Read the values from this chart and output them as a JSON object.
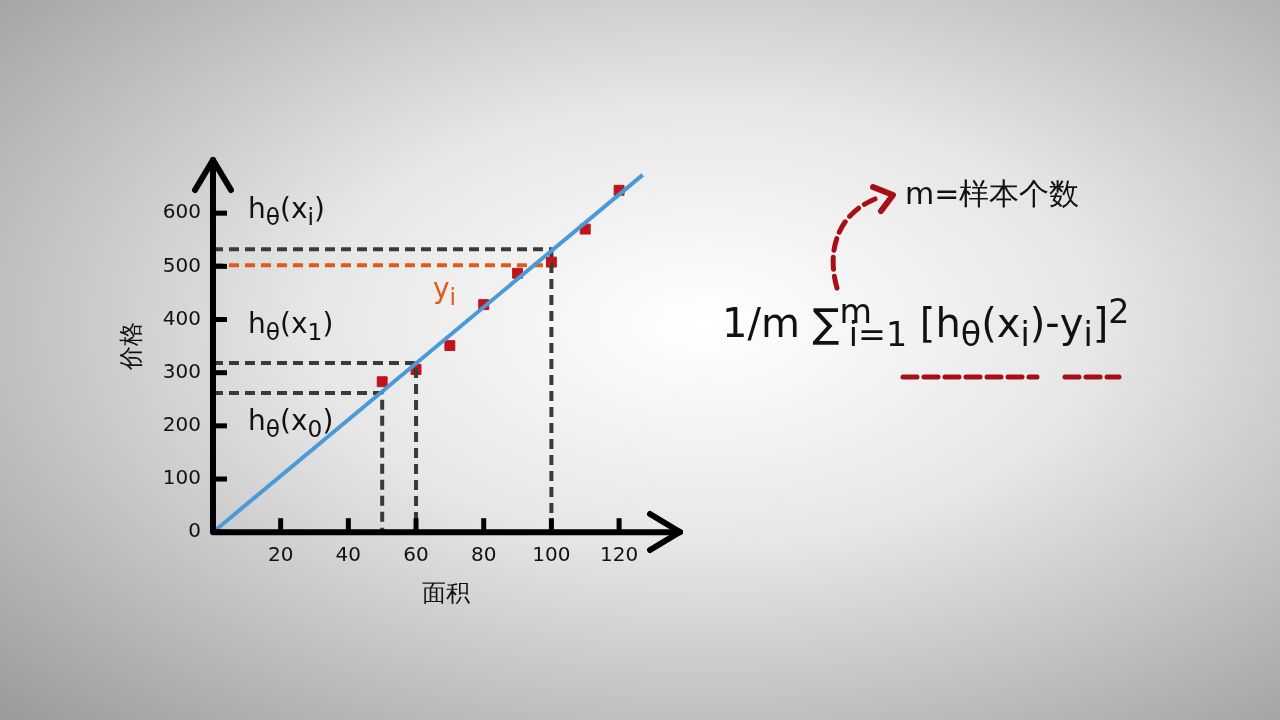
{
  "chart_data": {
    "type": "scatter",
    "xlabel": "面积",
    "ylabel": "价格",
    "xlim": [
      0,
      138
    ],
    "ylim": [
      0,
      700
    ],
    "xticks": [
      20,
      40,
      60,
      80,
      100,
      120
    ],
    "yticks": [
      0,
      100,
      200,
      300,
      400,
      500,
      600
    ],
    "grid": false,
    "legend": false,
    "marker": "square",
    "series": [
      {
        "type": "line",
        "color": "#4a9ad8",
        "marker": "none",
        "line_style": "solid",
        "x": [
          0,
          127
        ],
        "values": [
          0,
          672
        ]
      },
      {
        "type": "line",
        "color": "#3a3a3a",
        "marker": "none",
        "line_style": "dashed",
        "x": [
          0,
          50,
          50
        ],
        "values": [
          262,
          262,
          0
        ]
      },
      {
        "type": "line",
        "color": "#3a3a3a",
        "marker": "none",
        "line_style": "dashed",
        "x": [
          0,
          60,
          60
        ],
        "values": [
          318,
          318,
          0
        ]
      },
      {
        "type": "line",
        "color": "#3a3a3a",
        "marker": "none",
        "line_style": "dashed",
        "x": [
          0,
          100,
          100
        ],
        "values": [
          532,
          532,
          0
        ]
      },
      {
        "type": "line",
        "color": "#e05a1a",
        "marker": "none",
        "line_style": "dashed",
        "x": [
          0,
          100
        ],
        "values": [
          502,
          502
        ]
      },
      {
        "color": "#c0141c",
        "x": [
          50,
          60,
          70,
          80,
          90,
          100,
          110,
          120
        ],
        "values": [
          283,
          306,
          351,
          428,
          487,
          508,
          570,
          643
        ]
      }
    ],
    "annotations": [
      "h$_{θ}$(x$_{i}$)",
      "h$_{θ}$(x$_{1}$)",
      "h$_{θ}$(x$_{0}$)",
      "y$_{i}$",
      "m=样本个数",
      "1/m ∑$^{m}$$_{i=1}$ [h$_{θ}$(x$_{i}$)-y$_{i}$]$^{2}$"
    ]
  }
}
